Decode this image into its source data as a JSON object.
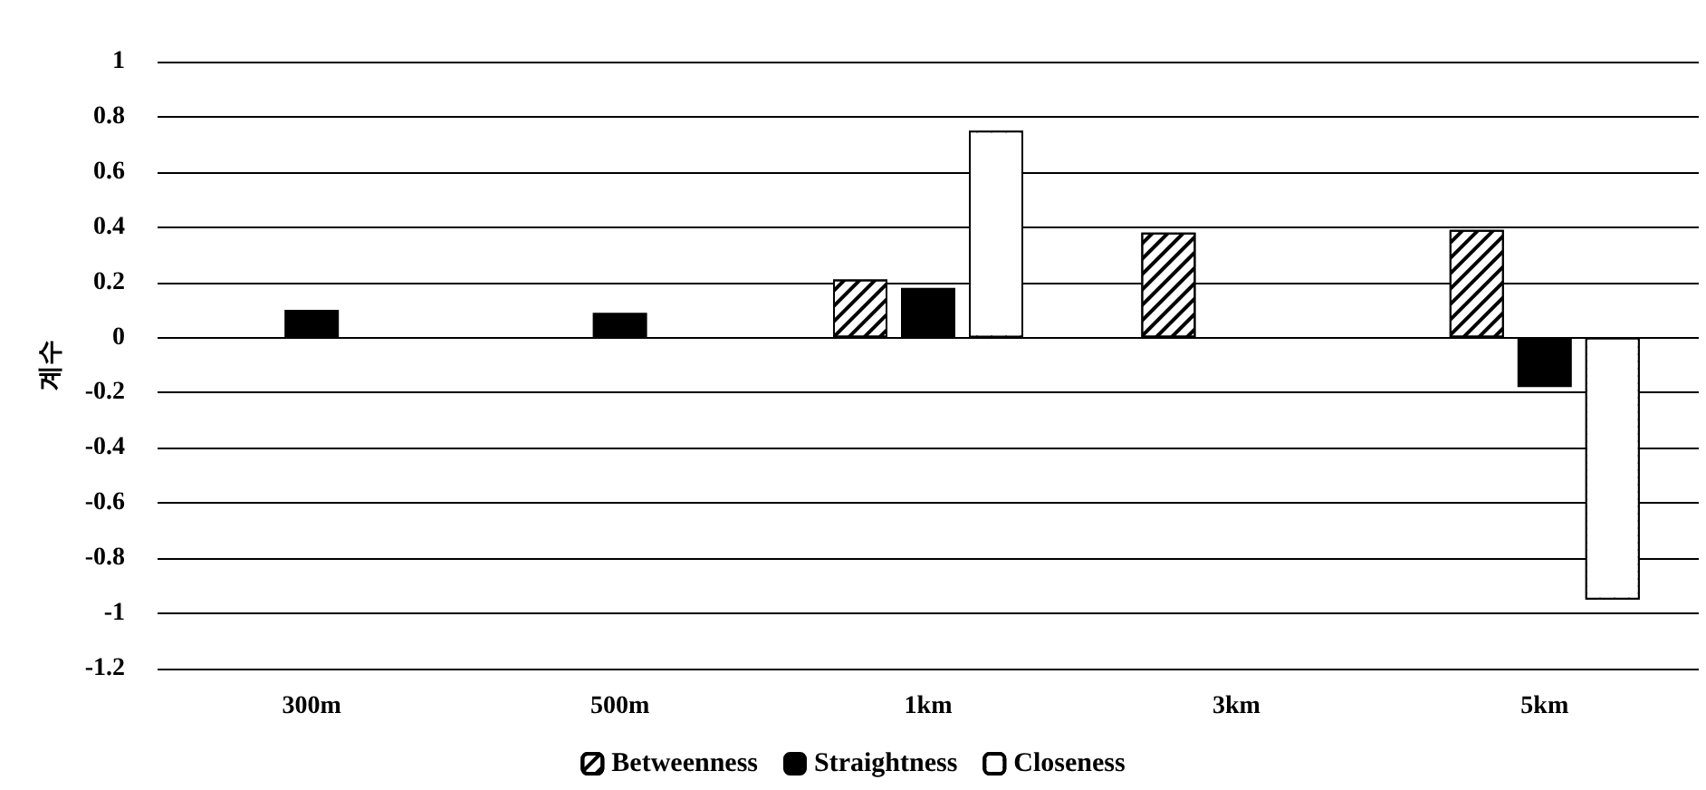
{
  "chart_data": {
    "type": "bar",
    "ylabel": "계수",
    "categories": [
      "300m",
      "500m",
      "1km",
      "3km",
      "5km"
    ],
    "series": [
      {
        "name": "Betweenness",
        "color": "#ffffff",
        "values": [
          null,
          null,
          0.21,
          0.38,
          0.39
        ]
      },
      {
        "name": "Straightness",
        "color": "#000000",
        "values": [
          0.1,
          0.09,
          0.18,
          null,
          -0.18
        ]
      },
      {
        "name": "Closeness",
        "color": "#ffffff",
        "values": [
          null,
          null,
          0.75,
          null,
          -0.95
        ]
      }
    ],
    "ylim": [
      -1.2,
      1
    ],
    "yticks": [
      -1.2,
      -1,
      -0.8,
      -0.6,
      -0.4,
      -0.2,
      0,
      0.2,
      0.4,
      0.6,
      0.8,
      1
    ],
    "grid": "y",
    "legend": "bottom"
  }
}
